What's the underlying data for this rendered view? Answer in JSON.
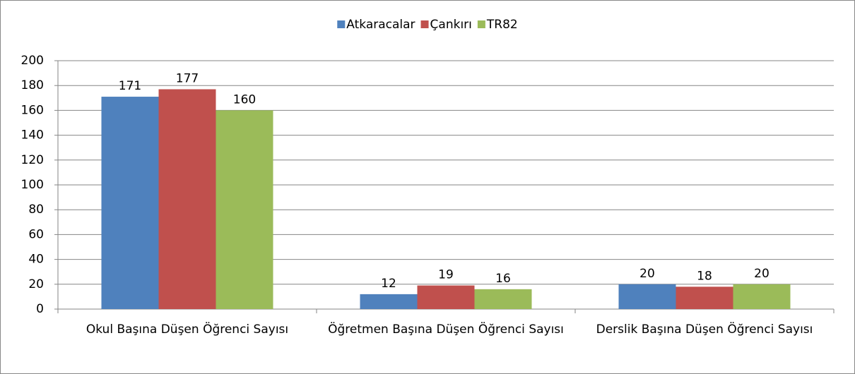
{
  "chart_data": {
    "type": "bar",
    "categories": [
      "Okul Başına Düşen Öğrenci Sayısı",
      "Öğretmen Başına Düşen Öğrenci Sayısı",
      "Derslik Başına Düşen Öğrenci Sayısı"
    ],
    "series": [
      {
        "name": "Atkaracalar",
        "color": "#4f81bd",
        "values": [
          171,
          12,
          20
        ]
      },
      {
        "name": "Çankırı",
        "color": "#c0504d",
        "values": [
          177,
          19,
          18
        ]
      },
      {
        "name": "TR82",
        "color": "#9bbb59",
        "values": [
          160,
          16,
          20
        ]
      }
    ],
    "ylim": [
      0,
      200
    ],
    "yticks": [
      0,
      20,
      40,
      60,
      80,
      100,
      120,
      140,
      160,
      180,
      200
    ],
    "grid": true,
    "legend": "top"
  }
}
